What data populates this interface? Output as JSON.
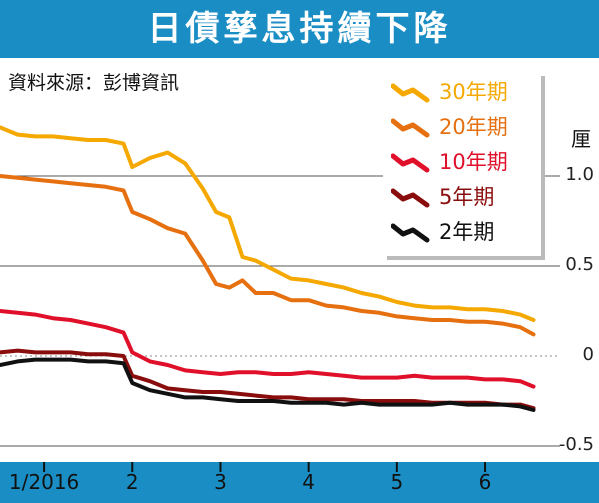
{
  "header": {
    "title": "日債孳息持續下降"
  },
  "source": "資料來源：彭博資訊",
  "chart_data": {
    "type": "line",
    "ylabel": "厘",
    "ylim": [
      -0.5,
      1.3
    ],
    "yticks": [
      1.0,
      0.5,
      0,
      -0.5
    ],
    "ytick_labels": [
      "1.0",
      "0.5",
      "0",
      "-0.5"
    ],
    "xlim": [
      0,
      6.35
    ],
    "xticks": [
      0.5,
      1.5,
      2.5,
      3.5,
      4.5,
      5.5
    ],
    "xtick_labels": [
      "1/2016",
      "2",
      "3",
      "4",
      "5",
      "6"
    ],
    "grid": "horizontal",
    "legend_position": "top-right",
    "series": [
      {
        "name": "30年期",
        "color": "#f5a800",
        "x": [
          0,
          0.2,
          0.4,
          0.6,
          0.8,
          1.0,
          1.2,
          1.4,
          1.5,
          1.7,
          1.9,
          2.1,
          2.3,
          2.45,
          2.6,
          2.75,
          2.9,
          3.1,
          3.3,
          3.5,
          3.7,
          3.9,
          4.1,
          4.3,
          4.5,
          4.7,
          4.9,
          5.1,
          5.3,
          5.5,
          5.7,
          5.9,
          6.05
        ],
        "values": [
          1.27,
          1.23,
          1.22,
          1.22,
          1.21,
          1.2,
          1.2,
          1.18,
          1.05,
          1.1,
          1.13,
          1.07,
          0.93,
          0.8,
          0.77,
          0.55,
          0.53,
          0.48,
          0.43,
          0.42,
          0.4,
          0.38,
          0.35,
          0.33,
          0.3,
          0.28,
          0.27,
          0.27,
          0.26,
          0.26,
          0.25,
          0.23,
          0.2
        ]
      },
      {
        "name": "20年期",
        "color": "#e67010",
        "x": [
          0,
          0.2,
          0.4,
          0.6,
          0.8,
          1.0,
          1.2,
          1.4,
          1.5,
          1.7,
          1.9,
          2.1,
          2.3,
          2.45,
          2.6,
          2.75,
          2.9,
          3.1,
          3.3,
          3.5,
          3.7,
          3.9,
          4.1,
          4.3,
          4.5,
          4.7,
          4.9,
          5.1,
          5.3,
          5.5,
          5.7,
          5.9,
          6.05
        ],
        "values": [
          1.0,
          0.99,
          0.98,
          0.97,
          0.96,
          0.95,
          0.94,
          0.92,
          0.8,
          0.76,
          0.71,
          0.68,
          0.53,
          0.4,
          0.38,
          0.42,
          0.35,
          0.35,
          0.31,
          0.31,
          0.28,
          0.27,
          0.25,
          0.24,
          0.22,
          0.21,
          0.2,
          0.2,
          0.19,
          0.19,
          0.18,
          0.16,
          0.12
        ]
      },
      {
        "name": "10年期",
        "color": "#e0102a",
        "x": [
          0,
          0.2,
          0.4,
          0.6,
          0.8,
          1.0,
          1.2,
          1.4,
          1.5,
          1.7,
          1.9,
          2.1,
          2.3,
          2.5,
          2.7,
          2.9,
          3.1,
          3.3,
          3.5,
          3.7,
          3.9,
          4.1,
          4.3,
          4.5,
          4.7,
          4.9,
          5.1,
          5.3,
          5.5,
          5.7,
          5.9,
          6.05
        ],
        "values": [
          0.25,
          0.24,
          0.23,
          0.21,
          0.2,
          0.18,
          0.16,
          0.13,
          0.02,
          -0.03,
          -0.05,
          -0.08,
          -0.09,
          -0.1,
          -0.09,
          -0.09,
          -0.1,
          -0.1,
          -0.09,
          -0.1,
          -0.11,
          -0.12,
          -0.12,
          -0.12,
          -0.11,
          -0.12,
          -0.12,
          -0.12,
          -0.13,
          -0.13,
          -0.14,
          -0.17
        ]
      },
      {
        "name": "5年期",
        "color": "#8a0d0d",
        "x": [
          0,
          0.2,
          0.4,
          0.6,
          0.8,
          1.0,
          1.2,
          1.4,
          1.5,
          1.7,
          1.9,
          2.1,
          2.3,
          2.5,
          2.7,
          2.9,
          3.1,
          3.3,
          3.5,
          3.7,
          3.9,
          4.1,
          4.3,
          4.5,
          4.7,
          4.9,
          5.1,
          5.3,
          5.5,
          5.7,
          5.9,
          6.05
        ],
        "values": [
          0.02,
          0.03,
          0.02,
          0.02,
          0.02,
          0.01,
          0.01,
          0.0,
          -0.11,
          -0.14,
          -0.18,
          -0.19,
          -0.2,
          -0.2,
          -0.21,
          -0.22,
          -0.23,
          -0.23,
          -0.24,
          -0.24,
          -0.24,
          -0.25,
          -0.25,
          -0.25,
          -0.25,
          -0.26,
          -0.26,
          -0.26,
          -0.26,
          -0.27,
          -0.27,
          -0.29
        ]
      },
      {
        "name": "2年期",
        "color": "#111111",
        "x": [
          0,
          0.2,
          0.4,
          0.6,
          0.8,
          1.0,
          1.2,
          1.4,
          1.5,
          1.7,
          1.9,
          2.1,
          2.3,
          2.5,
          2.7,
          2.9,
          3.1,
          3.3,
          3.5,
          3.7,
          3.9,
          4.1,
          4.3,
          4.5,
          4.7,
          4.9,
          5.1,
          5.3,
          5.5,
          5.7,
          5.9,
          6.05
        ],
        "values": [
          -0.05,
          -0.03,
          -0.02,
          -0.02,
          -0.02,
          -0.03,
          -0.03,
          -0.04,
          -0.15,
          -0.19,
          -0.21,
          -0.23,
          -0.23,
          -0.24,
          -0.25,
          -0.25,
          -0.25,
          -0.26,
          -0.26,
          -0.26,
          -0.27,
          -0.26,
          -0.27,
          -0.27,
          -0.27,
          -0.27,
          -0.26,
          -0.27,
          -0.27,
          -0.27,
          -0.28,
          -0.3
        ]
      }
    ]
  }
}
